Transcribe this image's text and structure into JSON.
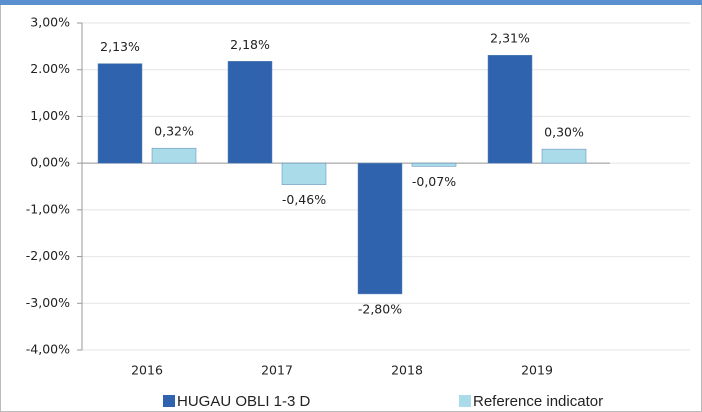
{
  "chart_data": {
    "type": "bar",
    "categories": [
      "2016",
      "2017",
      "2018",
      "2019"
    ],
    "series": [
      {
        "name": "HUGAU OBLI 1-3 D",
        "color": "#2f63ae",
        "values": [
          2.13,
          2.18,
          -2.8,
          2.31
        ],
        "value_labels": [
          "2,13%",
          "2,18%",
          "-2,80%",
          "2,31%"
        ]
      },
      {
        "name": "Reference indicator",
        "color": "#a9dce8",
        "values": [
          0.32,
          -0.46,
          -0.07,
          0.3
        ],
        "value_labels": [
          "0,32%",
          "-0,46%",
          "-0,07%",
          "0,30%"
        ]
      }
    ],
    "ylim": [
      -4,
      3
    ],
    "yticks": [
      {
        "value": 3,
        "label": "3,00%"
      },
      {
        "value": 2,
        "label": "2.00%"
      },
      {
        "value": 1,
        "label": "1,00%"
      },
      {
        "value": 0,
        "label": "0,00%"
      },
      {
        "value": -1,
        "label": "-1,00%"
      },
      {
        "value": -2,
        "label": "-2,00%"
      },
      {
        "value": -3,
        "label": "-3,00%"
      },
      {
        "value": -4,
        "label": "-4,00%"
      }
    ],
    "grid": true
  }
}
